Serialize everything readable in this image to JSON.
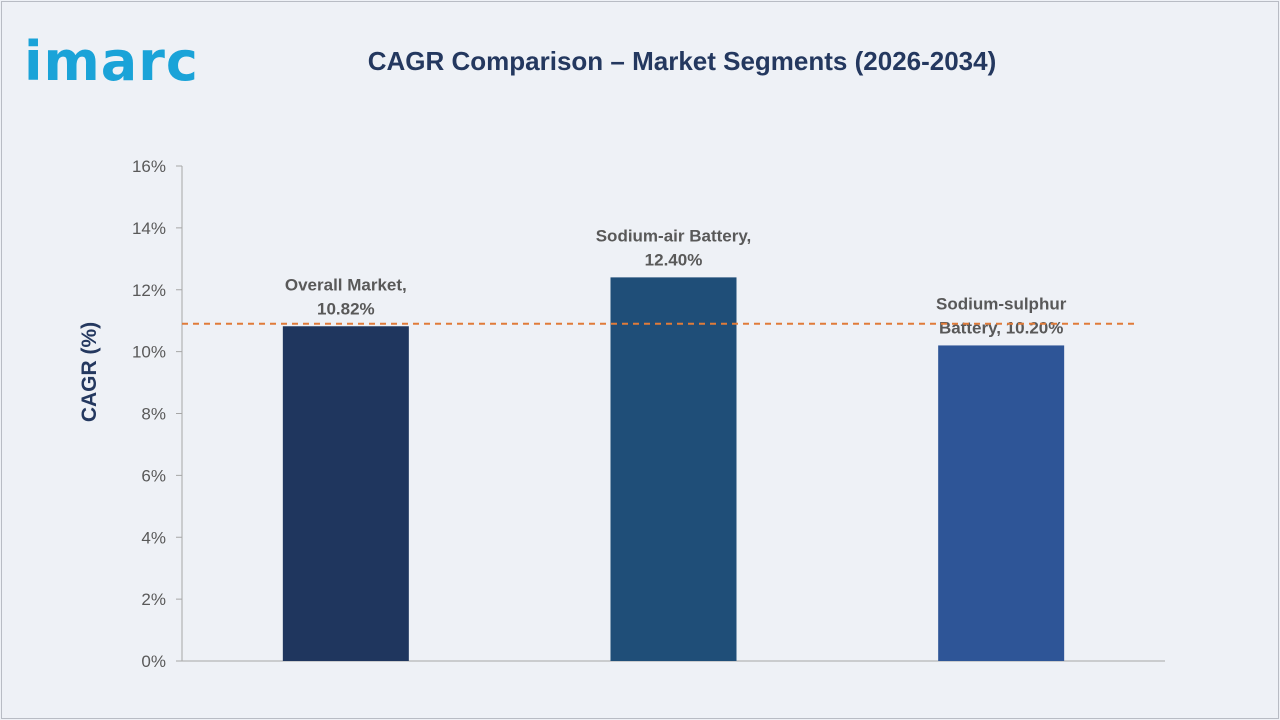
{
  "brand": {
    "logo_text": "imarc"
  },
  "chart_data": {
    "type": "bar",
    "title": "CAGR Comparison – Market Segments (2026-2034)",
    "ylabel": "CAGR (%)",
    "xlabel": "",
    "ylim": [
      0,
      16
    ],
    "ytick_step": 2,
    "ytick_suffix": "%",
    "categories": [
      "Overall Market",
      "Sodium-air Battery",
      "Sodium-sulphur Battery"
    ],
    "values": [
      10.82,
      12.4,
      10.2
    ],
    "data_labels": [
      [
        "Overall Market,",
        "10.82%"
      ],
      [
        "Sodium-air Battery,",
        "12.40%"
      ],
      [
        "Sodium-sulphur",
        "Battery, 10.20%"
      ]
    ],
    "bar_colors": [
      "#1f365e",
      "#1f4e78",
      "#2e5597"
    ],
    "reference_line": {
      "value": 10.9,
      "color": "#e07b39",
      "style": "dashed"
    },
    "grid": false,
    "legend": "none"
  }
}
